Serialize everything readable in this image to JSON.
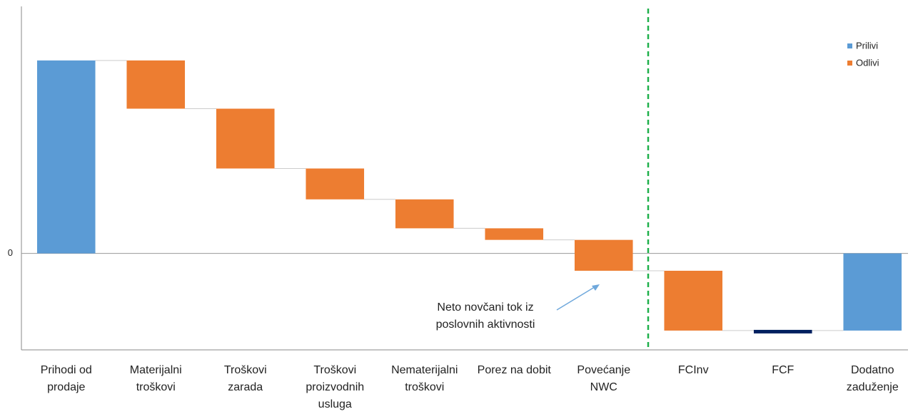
{
  "chart_data": {
    "type": "waterfall",
    "categories": [
      [
        "Prihodi od",
        "prodaje"
      ],
      [
        "Materijalni",
        "troškovi"
      ],
      [
        "Troškovi",
        "zarada"
      ],
      [
        "Troškovi",
        "proizvodnih",
        "usluga"
      ],
      [
        "Nematerijalni",
        "troškovi"
      ],
      [
        "Porez na dobit"
      ],
      [
        "Povećanje",
        "NWC"
      ],
      [
        "FCInv"
      ],
      [
        "FCF"
      ],
      [
        "Dodatno",
        "zaduženje"
      ]
    ],
    "values": [
      100,
      -25,
      -31,
      -16,
      -15,
      -6,
      -16,
      -31,
      -40,
      40
    ],
    "is_total": [
      false,
      false,
      false,
      false,
      false,
      false,
      false,
      false,
      true,
      false
    ],
    "series": [
      {
        "name": "Prilivi",
        "color": "#5b9bd5"
      },
      {
        "name": "Odlivi",
        "color": "#ed7d31"
      }
    ],
    "total_color": "#002060",
    "ylim": [
      -50,
      128
    ],
    "yticks": [
      0
    ],
    "legend": "top-right",
    "annotation": [
      "Neto novčani tok iz",
      "poslovnih aktivnosti"
    ]
  }
}
